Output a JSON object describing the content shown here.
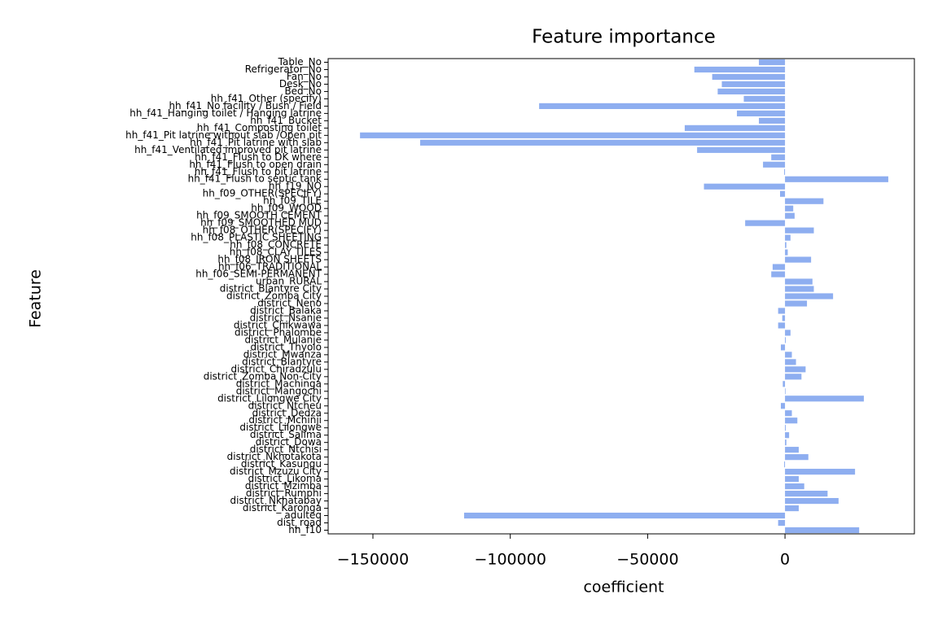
{
  "chart_data": {
    "type": "barh",
    "title": "Feature importance",
    "x_label": "coefficient",
    "y_label": "Feature",
    "color": "#8eaef0",
    "categories": [
      "Table_No",
      "Refrigerator_No",
      "Fan_No",
      "Desk_No",
      "Bed_No",
      "hh_f41_Other (specify)",
      "hh_f41_No facility / Bush / Field",
      "hh_f41_Hanging toilet / Hanging latrine",
      "hh_f41_Bucket",
      "hh_f41_Composting toilet",
      "hh_f41_Pit latrine without slab /Open pit",
      "hh_f41_Pit latrine with slab",
      "hh_f41_Ventilated improved pit latrine",
      "hh_f41_Flush to DK where",
      "hh_f41_Flush to open drain",
      "hh_f41_Flush to pit latrine",
      "hh_f41_Flush to septic tank",
      "hh_f19_NO",
      "hh_f09_OTHER(SPECIFY)",
      "hh_f09_TILE",
      "hh_f09_WOOD",
      "hh_f09_SMOOTH CEMENT",
      "hh_f09_SMOOTHED MUD",
      "hh_f08_OTHER(SPECIFY)",
      "hh_f08_PLASTIC SHEETING",
      "hh_f08_CONCRETE",
      "hh_f08_CLAY TILES",
      "hh_f08_IRON SHEETS",
      "hh_f06_TRADITIONAL",
      "hh_f06_SEMI-PERMANENT",
      "urban_RURAL",
      "district_Blantyre City",
      "district_Zomba City",
      "district_Neno",
      "district_Balaka",
      "district_Nsanje",
      "district_Chikwawa",
      "district_Phalombe",
      "district_Mulanje",
      "district_Thyolo",
      "district_Mwanza",
      "district_Blantyre",
      "district_Chiradzulu",
      "district_Zomba Non-City",
      "district_Machinga",
      "district_Mangochi",
      "district_Lilongwe City",
      "district_Ntcheu",
      "district_Dedza",
      "district_Mchinji",
      "district_Lilongwe",
      "district_Salima",
      "district_Dowa",
      "district_Ntchisi",
      "district_Nkhotakota",
      "district_Kasungu",
      "district_Mzuzu City",
      "district_Likoma",
      "district_Mzimba",
      "district_Rumphi",
      "district_Nkhatabay",
      "district_Karonga",
      "adulteq",
      "dist_road",
      "hh_f10"
    ],
    "values": [
      -9500,
      -33000,
      -26500,
      -23000,
      -24500,
      -15000,
      -89500,
      -17500,
      -9500,
      -36500,
      -154700,
      -132800,
      -32000,
      -5000,
      -8000,
      -300,
      37600,
      -29500,
      -1800,
      14000,
      3000,
      3500,
      -14500,
      10500,
      2000,
      500,
      1000,
      9500,
      -4500,
      -5000,
      10000,
      10500,
      17500,
      8000,
      -2500,
      -1000,
      -2500,
      2000,
      300,
      -1500,
      2500,
      4000,
      7500,
      6000,
      -800,
      200,
      28700,
      -1500,
      2500,
      4500,
      300,
      1500,
      500,
      5000,
      8500,
      -300,
      25500,
      5000,
      7000,
      15500,
      19500,
      5000,
      -116800,
      -2500,
      27000
    ],
    "xlim": [
      -166300,
      47100
    ],
    "xticks": [
      {
        "value": -150000,
        "label": "−150000"
      },
      {
        "value": -100000,
        "label": "−100000"
      },
      {
        "value": -50000,
        "label": "−50000"
      },
      0
    ]
  }
}
